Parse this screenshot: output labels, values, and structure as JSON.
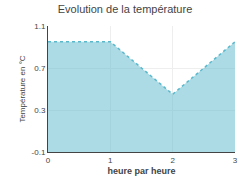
{
  "chart_data": {
    "type": "area",
    "title": "Evolution de la température",
    "xlabel": "heure par heure",
    "ylabel": "Température en °C",
    "x": [
      0,
      1,
      2,
      3
    ],
    "values": [
      0.95,
      0.95,
      0.45,
      0.95
    ],
    "color": "#5ab8cc",
    "line_style": "dotted",
    "xlim": [
      0,
      3
    ],
    "ylim": [
      -0.1,
      1.1
    ],
    "xticks": [
      0,
      1,
      2,
      3
    ],
    "yticks": [
      -0.1,
      0.3,
      0.7,
      1.1
    ],
    "grid": true
  }
}
